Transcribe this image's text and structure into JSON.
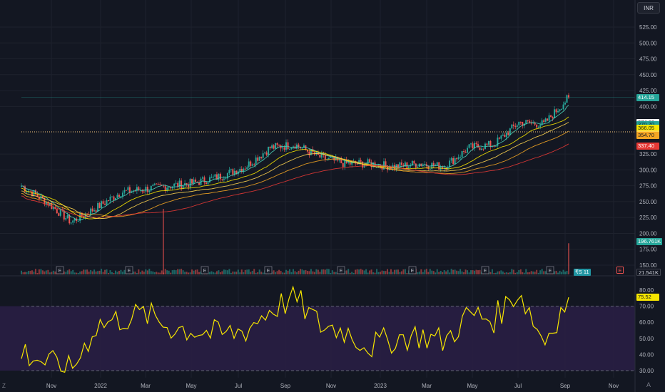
{
  "toolbar": {
    "currency_label": "INR"
  },
  "price_axis": {
    "ticks": [
      "525.00",
      "500.00",
      "475.00",
      "450.00",
      "425.00",
      "400.00",
      "325.00",
      "300.00",
      "275.00",
      "250.00",
      "225.00",
      "200.00",
      "175.00",
      "150.00"
    ],
    "tick_values": [
      525,
      500,
      475,
      450,
      425,
      400,
      325,
      300,
      275,
      250,
      225,
      200,
      175,
      150
    ]
  },
  "price_tags": [
    {
      "name": "last-price-tag",
      "text": "414.15",
      "value": 414.15,
      "bg": "#26a69a",
      "fg": "#ffffff"
    },
    {
      "name": "prev-close-tag",
      "text": "374.60",
      "value": 374.6,
      "bg": "#ffffff",
      "fg": "#131722"
    },
    {
      "name": "ma-1-tag",
      "text": "370.70",
      "value": 370.7,
      "bg": "#26a69a",
      "fg": "#131722"
    },
    {
      "name": "ma-2-tag",
      "text": "366.05",
      "value": 366.05,
      "bg": "#f7e600",
      "fg": "#131722"
    },
    {
      "name": "ma-3-tag",
      "text": "356.45",
      "value": 356.45,
      "bg": "#ffd54f",
      "fg": "#131722"
    },
    {
      "name": "ma-4-tag",
      "text": "354.70",
      "value": 354.7,
      "bg": "#f5a623",
      "fg": "#131722"
    },
    {
      "name": "ma-5-tag",
      "text": "337.40",
      "value": 337.4,
      "bg": "#e53935",
      "fg": "#ffffff"
    }
  ],
  "volume": {
    "ma_tag": "196.761K",
    "value_tag": "21.541K",
    "dividend_marker": "₹S 11",
    "event_marker": "E"
  },
  "rsi": {
    "ticks": [
      "80.00",
      "70.00",
      "60.00",
      "50.00",
      "40.00",
      "30.00"
    ],
    "tick_values": [
      80,
      70,
      60,
      50,
      40,
      30
    ],
    "value_tag": "75.52",
    "value": 75.52,
    "upper_band": 70,
    "lower_band": 30
  },
  "time_axis": {
    "labels": [
      "Nov",
      "2022",
      "Mar",
      "May",
      "Jul",
      "Sep",
      "Nov",
      "2023",
      "Mar",
      "May",
      "Jul",
      "Sep",
      "Nov"
    ]
  },
  "colors": {
    "up": "#26a69a",
    "down": "#ef5350",
    "rsi_line": "#f7e600",
    "rsi_band": "#2a1e45",
    "ma1": "#4dd0b8",
    "ma2": "#f7e600",
    "ma3": "#ffd54f",
    "ma4": "#f5a623",
    "ma5": "#e53935"
  },
  "icons": {
    "tv_logo": "Z",
    "corner": "A"
  },
  "chart_data": {
    "type": "candlestick-with-volume-and-rsi",
    "x_labels": [
      "Nov",
      "2022",
      "Mar",
      "May",
      "Jul",
      "Sep",
      "Nov",
      "2023",
      "Mar",
      "May",
      "Jul",
      "Sep",
      "Nov"
    ],
    "price_series": [
      {
        "x": "Nov",
        "close": 275
      },
      {
        "x": "Dec",
        "close": 250
      },
      {
        "x": "2022",
        "close": 218
      },
      {
        "x": "Feb",
        "close": 240
      },
      {
        "x": "Mar",
        "close": 265
      },
      {
        "x": "Apr",
        "close": 270
      },
      {
        "x": "May",
        "close": 275
      },
      {
        "x": "Jun",
        "close": 280
      },
      {
        "x": "Jul",
        "close": 290
      },
      {
        "x": "Aug",
        "close": 305
      },
      {
        "x": "Sep",
        "close": 335
      },
      {
        "x": "Oct",
        "close": 340
      },
      {
        "x": "Nov",
        "close": 320
      },
      {
        "x": "Dec",
        "close": 310
      },
      {
        "x": "2023",
        "close": 310
      },
      {
        "x": "Feb",
        "close": 305
      },
      {
        "x": "Mar",
        "close": 310
      },
      {
        "x": "Apr",
        "close": 305
      },
      {
        "x": "May",
        "close": 335
      },
      {
        "x": "Jun",
        "close": 340
      },
      {
        "x": "Jul",
        "close": 375
      },
      {
        "x": "Aug",
        "close": 372
      },
      {
        "x": "Sep",
        "close": 414.15
      }
    ],
    "moving_averages": [
      366.05,
      356.45,
      354.7,
      337.4,
      370.7
    ],
    "rsi_series": [
      {
        "x": "Nov",
        "value": 42
      },
      {
        "x": "Dec",
        "value": 35
      },
      {
        "x": "2022",
        "value": 30
      },
      {
        "x": "Feb",
        "value": 58
      },
      {
        "x": "Mar",
        "value": 62
      },
      {
        "x": "Apr",
        "value": 65
      },
      {
        "x": "May",
        "value": 57
      },
      {
        "x": "Jun",
        "value": 55
      },
      {
        "x": "Jul",
        "value": 52
      },
      {
        "x": "Aug",
        "value": 55
      },
      {
        "x": "Sep",
        "value": 68
      },
      {
        "x": "Oct",
        "value": 75
      },
      {
        "x": "Nov",
        "value": 58
      },
      {
        "x": "Dec",
        "value": 55
      },
      {
        "x": "2023",
        "value": 45
      },
      {
        "x": "Feb",
        "value": 50
      },
      {
        "x": "Mar",
        "value": 52
      },
      {
        "x": "Apr",
        "value": 48
      },
      {
        "x": "May",
        "value": 65
      },
      {
        "x": "Jun",
        "value": 62
      },
      {
        "x": "Jul",
        "value": 80
      },
      {
        "x": "Aug",
        "value": 48
      },
      {
        "x": "Sep",
        "value": 75.52
      }
    ],
    "ylim_price": [
      150,
      540
    ],
    "ylim_rsi": [
      28,
      83
    ],
    "grid": true
  }
}
